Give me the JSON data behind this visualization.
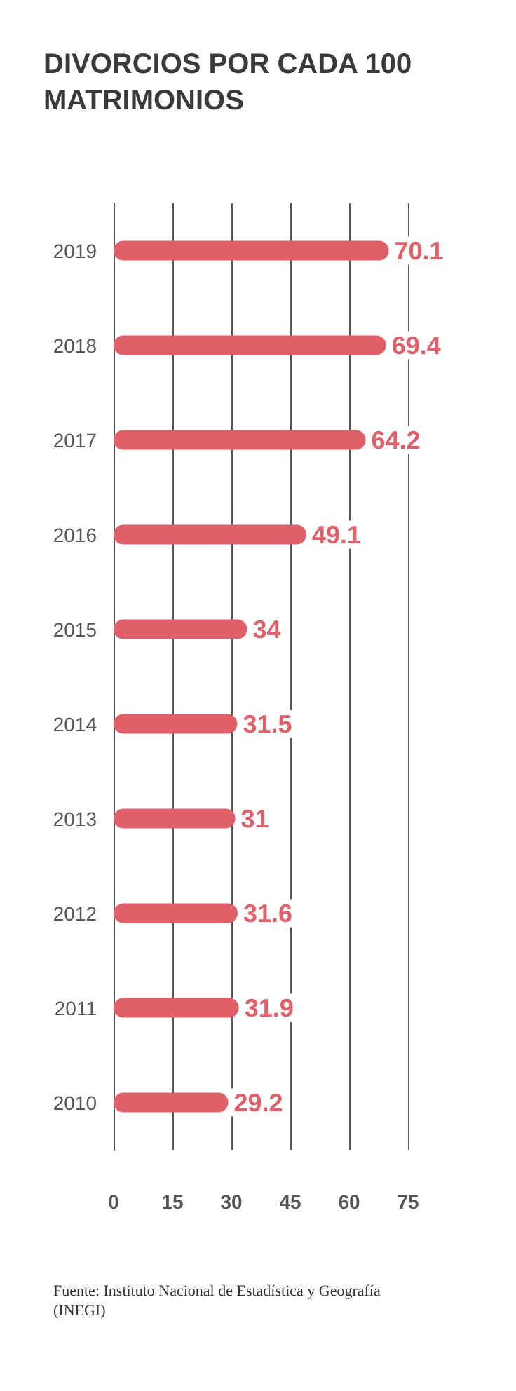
{
  "chart_data": {
    "type": "bar",
    "orientation": "horizontal",
    "title": "DIVORCIOS POR CADA 100 MATRIMONIOS",
    "categories": [
      "2019",
      "2018",
      "2017",
      "2016",
      "2015",
      "2014",
      "2013",
      "2012",
      "2011",
      "2010"
    ],
    "values": [
      70.1,
      69.4,
      64.2,
      49.1,
      34,
      31.5,
      31,
      31.6,
      31.9,
      29.2
    ],
    "color": "#e0606a",
    "xlim": [
      0,
      75
    ],
    "xticks": [
      0,
      15,
      30,
      45,
      60,
      75
    ],
    "grid": "x",
    "data_labels": true,
    "annotations": [
      "Fuente: Instituto Nacional de Estadística y Geografía (INEGI)"
    ]
  }
}
